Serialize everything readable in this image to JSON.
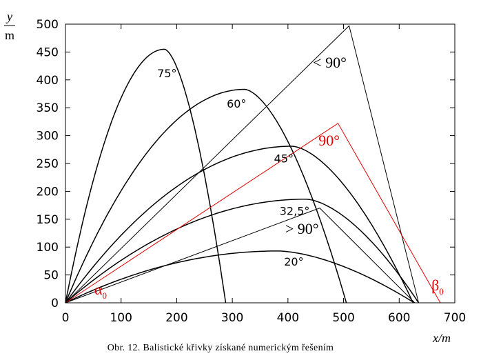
{
  "chart_data": {
    "type": "line",
    "caption": "Obr. 12. Balistické křivky získané numerickým řešením",
    "xlabel": {
      "var": "x",
      "unit": "m"
    },
    "ylabel": {
      "var": "y",
      "unit": "m"
    },
    "xlim": [
      0,
      700
    ],
    "ylim": [
      0,
      500
    ],
    "xticks": [
      0,
      100,
      200,
      300,
      400,
      500,
      600,
      700
    ],
    "yticks": [
      0,
      50,
      100,
      150,
      200,
      250,
      300,
      350,
      400,
      450,
      500
    ],
    "grid": false,
    "series": [
      {
        "name": "75°",
        "color": "#000000",
        "peak": [
          178,
          455
        ],
        "end": [
          288,
          0
        ]
      },
      {
        "name": "60°",
        "color": "#000000",
        "peak": [
          322,
          383
        ],
        "end": [
          505,
          0
        ]
      },
      {
        "name": "45°",
        "color": "#000000",
        "peak": [
          407,
          281
        ],
        "end": [
          625,
          0
        ]
      },
      {
        "name": "32,5°",
        "color": "#000000",
        "peak": [
          432,
          186
        ],
        "end": [
          635,
          0
        ]
      },
      {
        "name": "20°",
        "color": "#000000",
        "peak": [
          382,
          93
        ],
        "end": [
          627,
          0
        ]
      }
    ],
    "lines": [
      {
        "name": "< 90°",
        "color": "#000000",
        "points": [
          [
            0,
            0
          ],
          [
            510,
            497
          ],
          [
            635,
            0
          ]
        ]
      },
      {
        "name": "90°",
        "color": "#e00000",
        "points": [
          [
            0,
            0
          ],
          [
            490,
            322
          ],
          [
            674,
            0
          ]
        ]
      },
      {
        "name": "> 90°",
        "color": "#000000",
        "points": [
          [
            0,
            0
          ],
          [
            457,
            170
          ],
          [
            628,
            0
          ]
        ]
      }
    ],
    "annotations": [
      {
        "text": "75°",
        "x": 165,
        "y": 405
      },
      {
        "text": "60°",
        "x": 290,
        "y": 350
      },
      {
        "text": "45°",
        "x": 375,
        "y": 252
      },
      {
        "text": "32,5°",
        "x": 385,
        "y": 158
      },
      {
        "text": "20°",
        "x": 393,
        "y": 67
      },
      {
        "text": "< 90°",
        "x": 445,
        "y": 422
      },
      {
        "text": "90°",
        "x": 455,
        "y": 282
      },
      {
        "text": "> 90°",
        "x": 395,
        "y": 124
      },
      {
        "text": "α",
        "sub": "0",
        "x": 52,
        "y": 15
      },
      {
        "text": "β",
        "sub": "0",
        "x": 658,
        "y": 22
      }
    ]
  }
}
